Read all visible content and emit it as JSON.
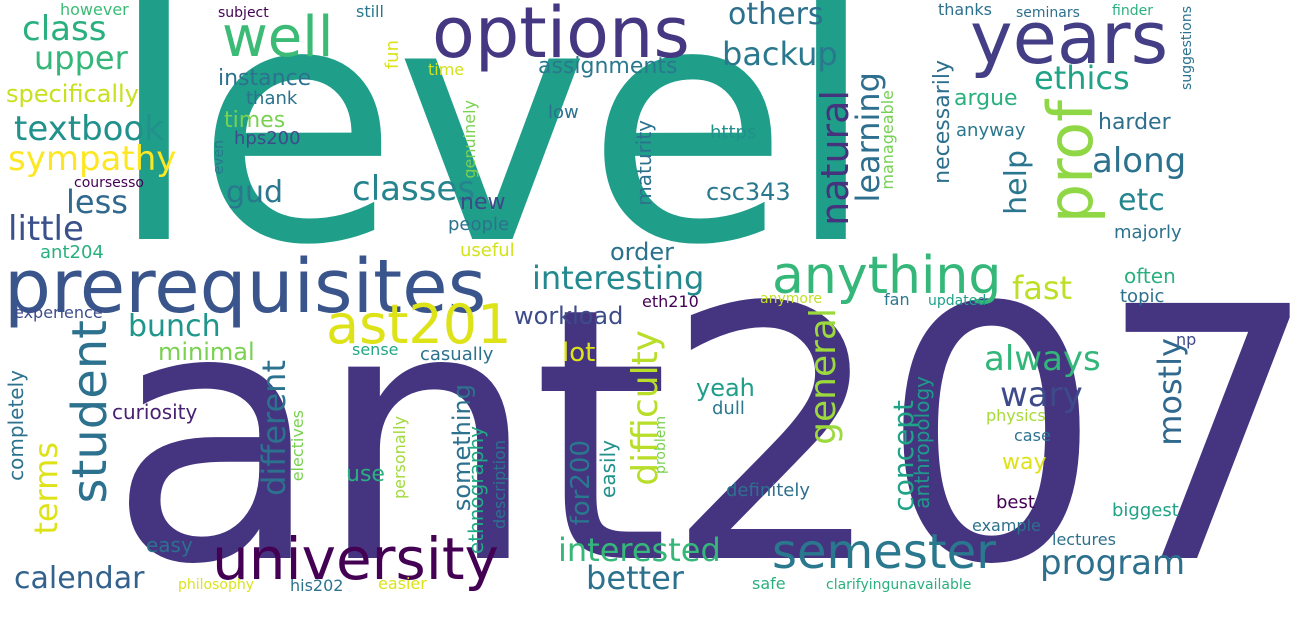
{
  "words": [
    "level",
    "ant207",
    "prerequisites",
    "options",
    "years",
    "prof",
    "anything",
    "university",
    "semester",
    "ast201",
    "student",
    "well",
    "others",
    "backup",
    "ethics",
    "class",
    "upper",
    "textbook",
    "sympathy",
    "gud",
    "classes",
    "natural",
    "learning",
    "along",
    "etc",
    "less",
    "little",
    "interesting",
    "fast",
    "help",
    "bunch",
    "general",
    "always",
    "wary",
    "mostly",
    "terms",
    "different",
    "difficulty",
    "better",
    "interested",
    "calendar",
    "program",
    "concept",
    "anthropology",
    "for200",
    "something",
    "ethnography",
    "minimal",
    "yeah",
    "lot",
    "csc343",
    "order",
    "workload",
    "curiosity",
    "assignments",
    "instance",
    "specifically",
    "times",
    "thank",
    "hps200",
    "https",
    "maturity",
    "argue",
    "harder",
    "anyway",
    "necessarily",
    "manageable",
    "genuinely",
    "new",
    "people",
    "useful",
    "ant204",
    "majorly",
    "often",
    "topic",
    "eth210",
    "anymore",
    "fan",
    "updated",
    "experience",
    "casually",
    "sense",
    "np",
    "completely",
    "electives",
    "dull",
    "physics",
    "case",
    "way",
    "definitely",
    "problem",
    "personally",
    "description",
    "easily",
    "use",
    "best",
    "example",
    "biggest",
    "easy",
    "lectures",
    "philosophy",
    "his202",
    "easier",
    "safe",
    "clarifyingunavailable",
    "however",
    "subject",
    "still",
    "thanks",
    "seminars",
    "finder",
    "suggestions",
    "fun",
    "time",
    "low",
    "even",
    "coursesso"
  ]
}
